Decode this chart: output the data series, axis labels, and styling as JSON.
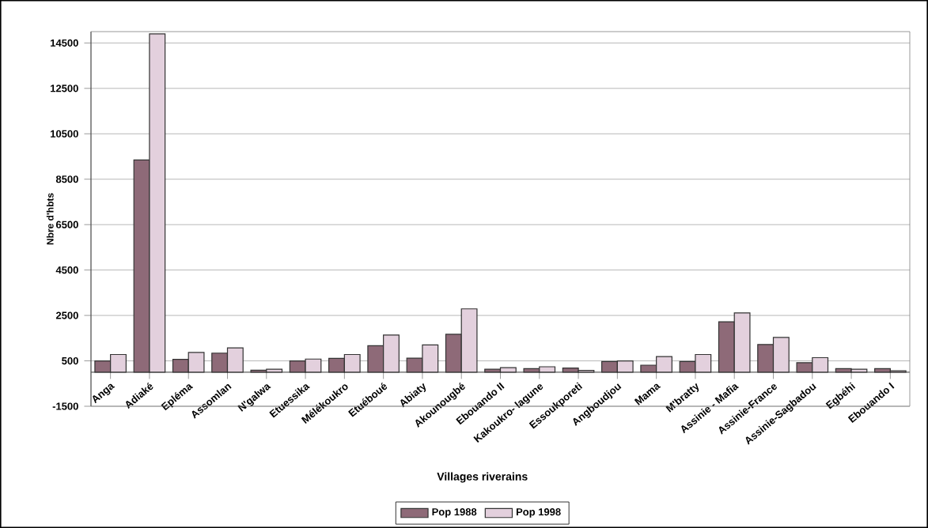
{
  "chart_data": {
    "type": "bar",
    "xlabel": "Villages riverains",
    "ylabel": "Nbre d'hbts",
    "categories": [
      "Anga",
      "Adiaké",
      "Epléma",
      "Assomlan",
      "N'galwa",
      "Etuessika",
      "Mélékoukro",
      "Etuéboué",
      "Abiaty",
      "Akounougbé",
      "Ebouando II",
      "Kakoukro- lagune",
      "Essoukporeti",
      "Angboudjou",
      "Mama",
      "M'bratty",
      "Assinie - Mafia",
      "Assinie-France",
      "Assinie-Sagbadou",
      "Egbéhi",
      "Ebouando I"
    ],
    "series": [
      {
        "name": "Pop 1988",
        "color": "#8e6a78",
        "values": [
          500,
          9350,
          570,
          840,
          90,
          500,
          610,
          1170,
          620,
          1670,
          130,
          160,
          180,
          470,
          310,
          470,
          2220,
          1220,
          420,
          160,
          160
        ]
      },
      {
        "name": "Pop 1998",
        "color": "#e3d0dd",
        "values": [
          780,
          14900,
          870,
          1070,
          130,
          580,
          780,
          1640,
          1200,
          2790,
          200,
          240,
          80,
          500,
          690,
          780,
          2610,
          1530,
          640,
          130,
          60
        ]
      }
    ],
    "ylim": [
      -1500,
      15000
    ],
    "yticks": [
      -1500,
      500,
      2500,
      4500,
      6500,
      8500,
      10500,
      12500,
      14500
    ],
    "grid": "y",
    "legend": "bottom"
  }
}
